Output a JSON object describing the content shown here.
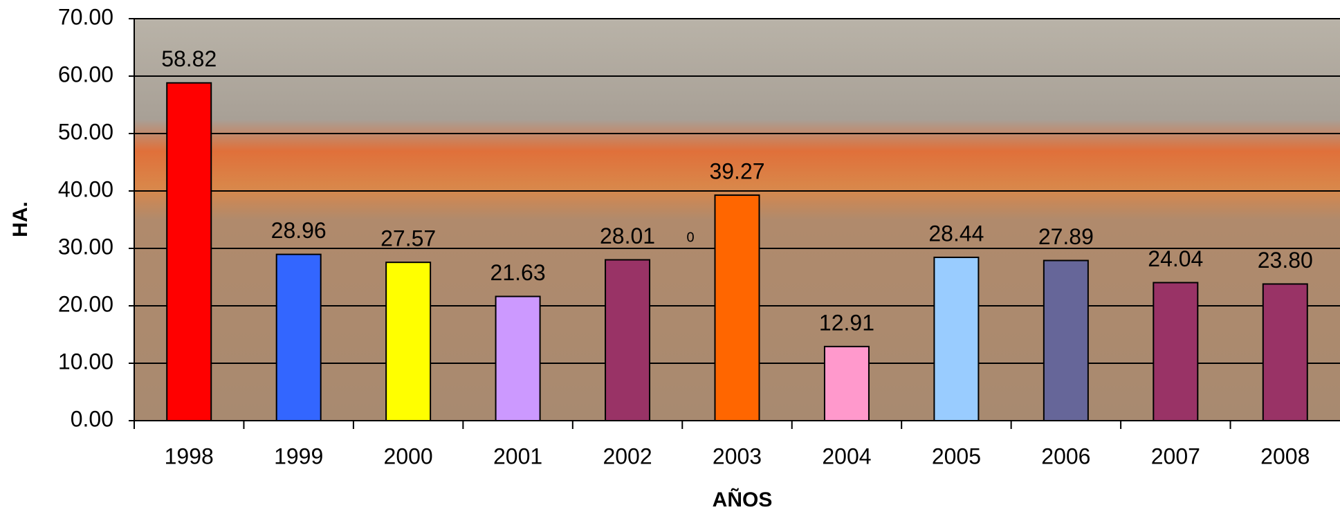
{
  "chart_data": {
    "type": "bar",
    "x_label": "AÑOS",
    "y_label": "HA.",
    "categories": [
      "1998",
      "1999",
      "2000",
      "2001",
      "2002",
      "2003",
      "2004",
      "2005",
      "2006",
      "2007",
      "2008"
    ],
    "values": [
      58.82,
      28.96,
      27.57,
      21.63,
      28.01,
      39.27,
      12.91,
      28.44,
      27.89,
      24.04,
      23.8
    ],
    "value_labels": [
      "58.82",
      "28.96",
      "27.57",
      "21.63",
      "28.01",
      "39.27",
      "12.91",
      "28.44",
      "27.89",
      "24.04",
      "23.80"
    ],
    "colors": [
      "#ff0000",
      "#3366ff",
      "#ffff00",
      "#cc99ff",
      "#993366",
      "#ff6600",
      "#ff99cc",
      "#99ccff",
      "#666699",
      "#993366",
      "#993366"
    ],
    "annotation": "0",
    "ylim": [
      0,
      70
    ],
    "yticks": [
      {
        "value": 0,
        "label": "0.00"
      },
      {
        "value": 10,
        "label": "10.00"
      },
      {
        "value": 20,
        "label": "20.00"
      },
      {
        "value": 30,
        "label": "30.00"
      },
      {
        "value": 40,
        "label": "40.00"
      },
      {
        "value": 50,
        "label": "50.00"
      },
      {
        "value": 60,
        "label": "60.00"
      },
      {
        "value": 70,
        "label": "70.00"
      }
    ],
    "grid": true
  }
}
